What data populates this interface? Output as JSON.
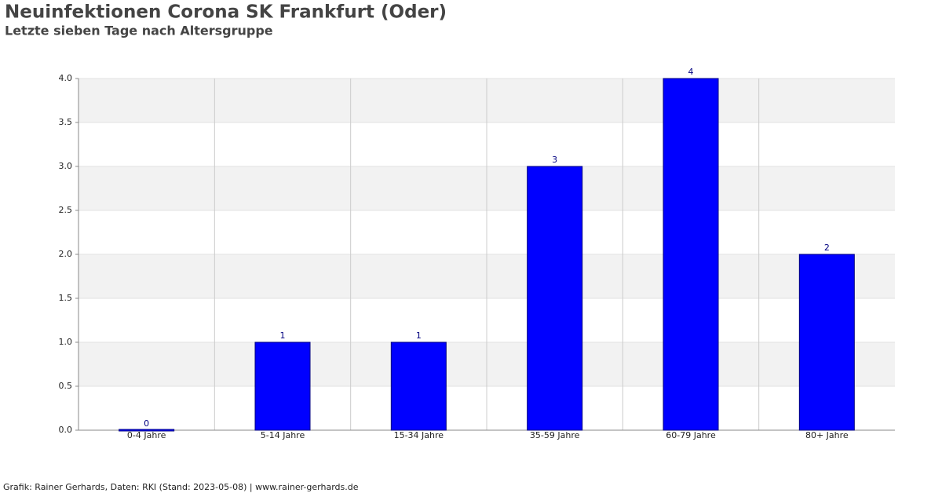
{
  "chart_data": {
    "type": "bar",
    "title": "Neuinfektionen Corona SK Frankfurt (Oder)",
    "subtitle": "Letzte sieben Tage nach Altersgruppe",
    "footer": "Grafik: Rainer Gerhards, Daten: RKI (Stand: 2023-05-08) | www.rainer-gerhards.de",
    "categories": [
      "0-4 Jahre",
      "5-14 Jahre",
      "15-34 Jahre",
      "35-59 Jahre",
      "60-79 Jahre",
      "80+ Jahre"
    ],
    "values": [
      0,
      1,
      1,
      3,
      4,
      2
    ],
    "color": "#0000ff",
    "ylim": [
      0,
      4
    ],
    "yticks": [
      {
        "value": 0,
        "label": "0.0"
      },
      0.5,
      {
        "value": 1,
        "label": "1.0"
      },
      1.5,
      {
        "value": 2,
        "label": "2.0"
      },
      2.5,
      {
        "value": 3,
        "label": "3.0"
      },
      3.5,
      {
        "value": 4,
        "label": "4.0"
      }
    ],
    "grid": true
  }
}
